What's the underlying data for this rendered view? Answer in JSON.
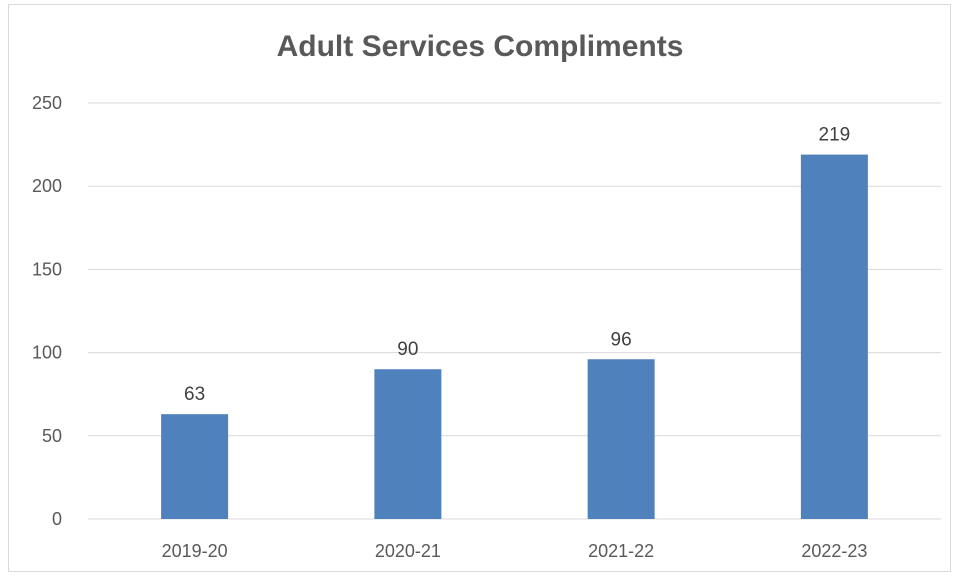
{
  "chart_data": {
    "type": "bar",
    "title": "Adult Services Compliments",
    "categories": [
      "2019-20",
      "2020-21",
      "2021-22",
      "2022-23"
    ],
    "values": [
      63,
      90,
      96,
      219
    ],
    "data_labels": [
      "63",
      "90",
      "96",
      "219"
    ],
    "ylim": [
      0,
      250
    ],
    "yticks": [
      0,
      50,
      100,
      150,
      200,
      250
    ],
    "xlabel": "",
    "ylabel": "",
    "grid": true,
    "legend": "none",
    "bar_color": "#4f81bd",
    "gridline_color": "#d9d9d9",
    "text_color": "#595959"
  }
}
